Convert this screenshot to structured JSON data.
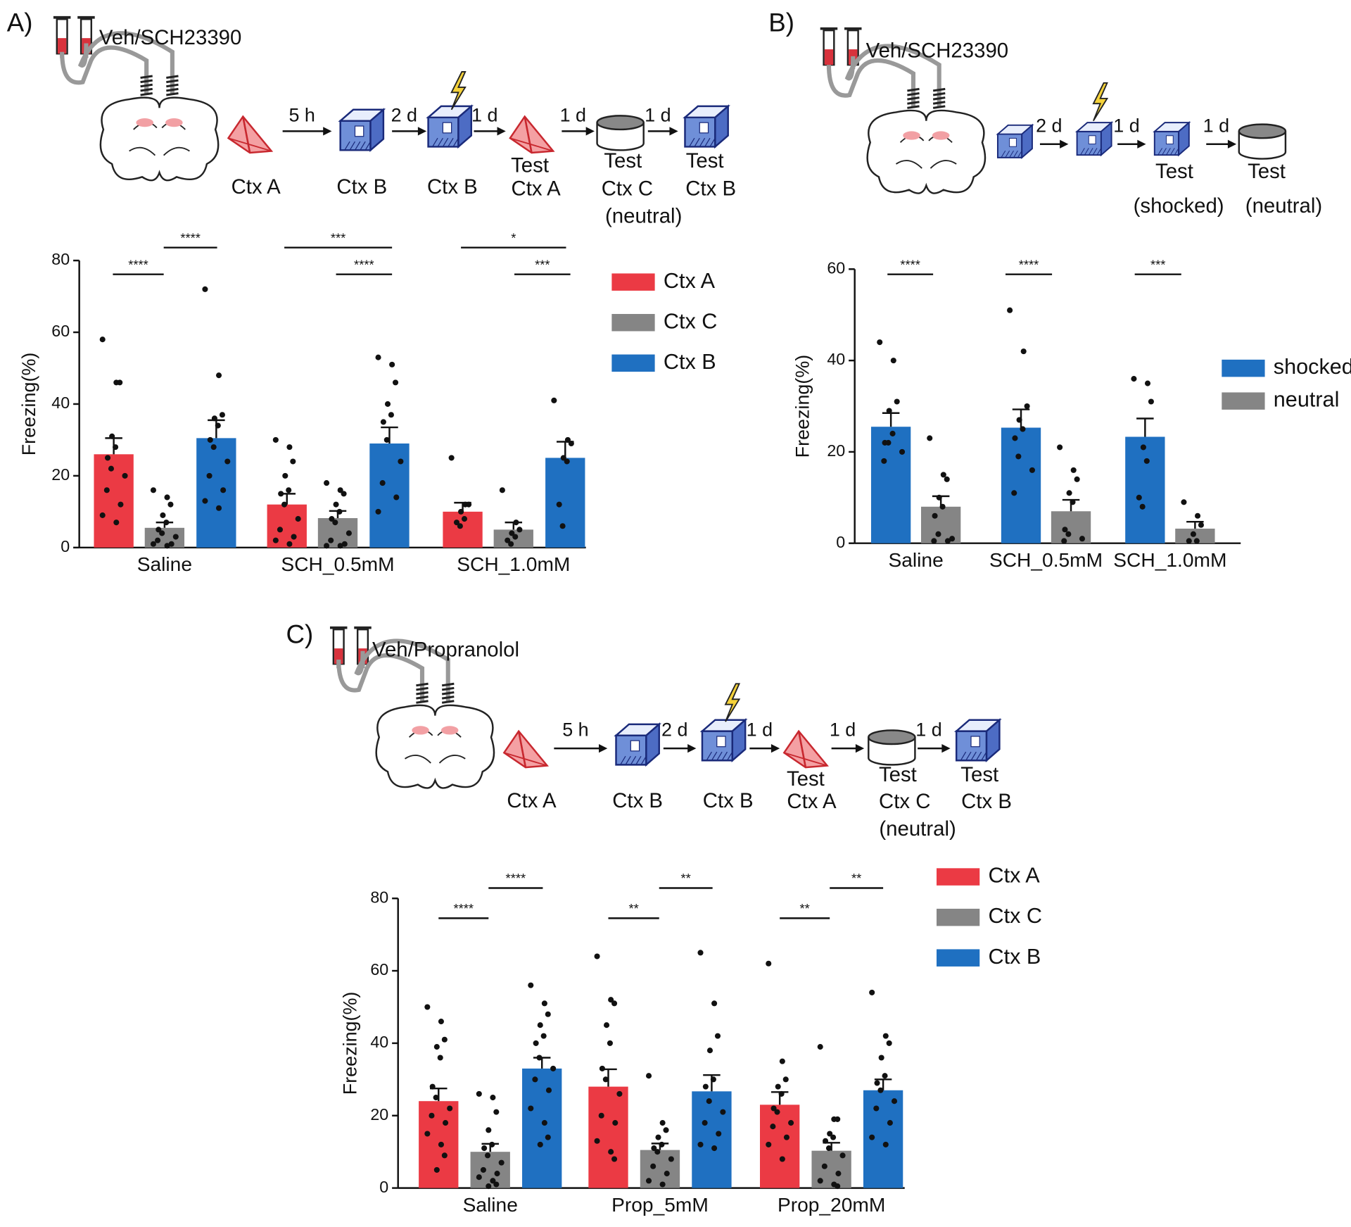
{
  "panels": [
    {
      "label": "A)",
      "drug": "Veh/SCH23390",
      "intervals": [
        "5 h",
        "2 d",
        "1 d",
        "1 d",
        "1 d"
      ],
      "contexts": [
        [
          "Ctx A"
        ],
        [
          "Ctx B"
        ],
        [
          "Ctx B"
        ],
        [
          "Test",
          "Ctx A"
        ],
        [
          "Test",
          "Ctx C",
          "(neutral)"
        ],
        [
          "Test",
          "Ctx B"
        ]
      ]
    },
    {
      "label": "B)",
      "drug": "Veh/SCH23390",
      "intervals": [
        "2 d",
        "1 d",
        "1 d"
      ],
      "contexts": [
        [
          "Test",
          "(shocked)"
        ],
        [
          "Test",
          "(neutral)"
        ]
      ]
    },
    {
      "label": "C)",
      "drug": "Veh/Propranolol",
      "intervals": [
        "5 h",
        "2 d",
        "1 d",
        "1 d",
        "1 d"
      ],
      "contexts": [
        [
          "Ctx A"
        ],
        [
          "Ctx B"
        ],
        [
          "Ctx B"
        ],
        [
          "Test",
          "Ctx A"
        ],
        [
          "Test",
          "Ctx C",
          "(neutral)"
        ],
        [
          "Test",
          "Ctx B"
        ]
      ]
    }
  ],
  "chart_data": [
    {
      "type": "bar",
      "ylabel": "Freezing(%)",
      "categories": [
        "Saline",
        "SCH_0.5mM",
        "SCH_1.0mM"
      ],
      "ylim": [
        0,
        80
      ],
      "yticks": [
        0,
        20,
        40,
        60,
        80
      ],
      "series": [
        {
          "name": "Ctx A",
          "color": "#eb3a44",
          "values": [
            26,
            12,
            10
          ],
          "errors": [
            4.5,
            3,
            2.5
          ],
          "points": [
            [
              58,
              46,
              46,
              31,
              28,
              25,
              22,
              20,
              16,
              12,
              9,
              7
            ],
            [
              30,
              28,
              24,
              20,
              16,
              15,
              12,
              8,
              5,
              3,
              2,
              1
            ],
            [
              25,
              12,
              12,
              10,
              8,
              7,
              6
            ]
          ]
        },
        {
          "name": "Ctx C",
          "color": "#858585",
          "values": [
            5.5,
            8.2,
            5
          ],
          "errors": [
            1.5,
            2,
            2
          ],
          "points": [
            [
              16,
              14,
              12,
              9,
              7,
              5,
              4,
              3,
              2,
              1,
              1,
              0.5
            ],
            [
              18,
              16,
              15,
              12,
              10,
              8,
              7,
              4,
              2,
              1,
              0.5,
              0.5
            ],
            [
              16,
              7,
              5,
              4,
              3,
              2,
              1
            ]
          ]
        },
        {
          "name": "Ctx B",
          "color": "#1f70c1",
          "values": [
            30.5,
            29,
            25
          ],
          "errors": [
            5,
            4.5,
            4.5
          ],
          "points": [
            [
              72,
              48,
              37,
              36,
              34,
              30,
              28,
              24,
              20,
              16,
              13,
              11
            ],
            [
              53,
              51,
              46,
              40,
              37,
              35,
              30,
              24,
              18,
              14,
              10
            ],
            [
              41,
              30,
              29,
              25,
              24,
              12,
              6
            ]
          ]
        }
      ],
      "annotations": [
        "****",
        "****",
        "***",
        "****",
        "*",
        "***"
      ]
    },
    {
      "type": "bar",
      "ylabel": "Freezing(%)",
      "categories": [
        "Saline",
        "SCH_0.5mM",
        "SCH_1.0mM"
      ],
      "ylim": [
        0,
        60
      ],
      "yticks": [
        0,
        20,
        40,
        60
      ],
      "series": [
        {
          "name": "shocked",
          "color": "#1f70c1",
          "values": [
            25.5,
            25.3,
            23.3
          ],
          "errors": [
            3,
            4,
            4
          ],
          "points": [
            [
              44,
              40,
              31,
              29,
              24,
              22,
              22,
              20,
              18
            ],
            [
              51,
              42,
              30,
              27,
              25,
              23,
              19,
              16,
              11
            ],
            [
              36,
              35,
              31,
              21,
              18,
              10,
              8
            ]
          ]
        },
        {
          "name": "neutral",
          "color": "#858585",
          "values": [
            8,
            7,
            3.2
          ],
          "errors": [
            2.3,
            2.5,
            1.5
          ],
          "points": [
            [
              23,
              15,
              14,
              10,
              8,
              6,
              2,
              1,
              0.5,
              0.5
            ],
            [
              21,
              16,
              14,
              11,
              9,
              3,
              2,
              1,
              0.5
            ],
            [
              9,
              6,
              4,
              2,
              0.5,
              0.5
            ]
          ]
        }
      ],
      "annotations": [
        "****",
        "****",
        "***"
      ]
    },
    {
      "type": "bar",
      "ylabel": "Freezing(%)",
      "categories": [
        "Saline",
        "Prop_5mM",
        "Prop_20mM"
      ],
      "ylim": [
        0,
        80
      ],
      "yticks": [
        0,
        20,
        40,
        60,
        80
      ],
      "series": [
        {
          "name": "Ctx A",
          "color": "#eb3a44",
          "values": [
            24,
            28,
            23
          ],
          "errors": [
            3.5,
            4.8,
            3.5
          ],
          "points": [
            [
              50,
              46,
              41,
              39,
              36,
              28,
              25,
              22,
              20,
              18,
              15,
              12,
              9,
              5
            ],
            [
              64,
              52,
              51,
              45,
              40,
              33,
              30,
              26,
              20,
              18,
              13,
              10,
              8
            ],
            [
              62,
              35,
              30,
              28,
              26,
              22,
              21,
              18,
              17,
              14,
              12,
              8
            ]
          ]
        },
        {
          "name": "Ctx C",
          "color": "#858585",
          "values": [
            10,
            10.5,
            10.3
          ],
          "errors": [
            2.2,
            1.8,
            2.2
          ],
          "points": [
            [
              26,
              25,
              21,
              16,
              12,
              11,
              9,
              7,
              5,
              4,
              3,
              2,
              1,
              0.5
            ],
            [
              31,
              18,
              16,
              14,
              12,
              11,
              10,
              8,
              6,
              4,
              2,
              1
            ],
            [
              39,
              19,
              19,
              15,
              14,
              13,
              11,
              9,
              6,
              4,
              2,
              1,
              0.5
            ]
          ]
        },
        {
          "name": "Ctx B",
          "color": "#1f70c1",
          "values": [
            33,
            26.7,
            27
          ],
          "errors": [
            3,
            4.5,
            3
          ],
          "points": [
            [
              56,
              51,
              48,
              45,
              42,
              40,
              36,
              33,
              30,
              27,
              22,
              18,
              14,
              12
            ],
            [
              65,
              51,
              42,
              38,
              30,
              28,
              24,
              21,
              18,
              15,
              12,
              11
            ],
            [
              54,
              42,
              40,
              36,
              31,
              29,
              27,
              24,
              22,
              18,
              14,
              12
            ]
          ]
        }
      ],
      "annotations": [
        "****",
        "****",
        "**",
        "**",
        "**",
        "**"
      ]
    }
  ]
}
